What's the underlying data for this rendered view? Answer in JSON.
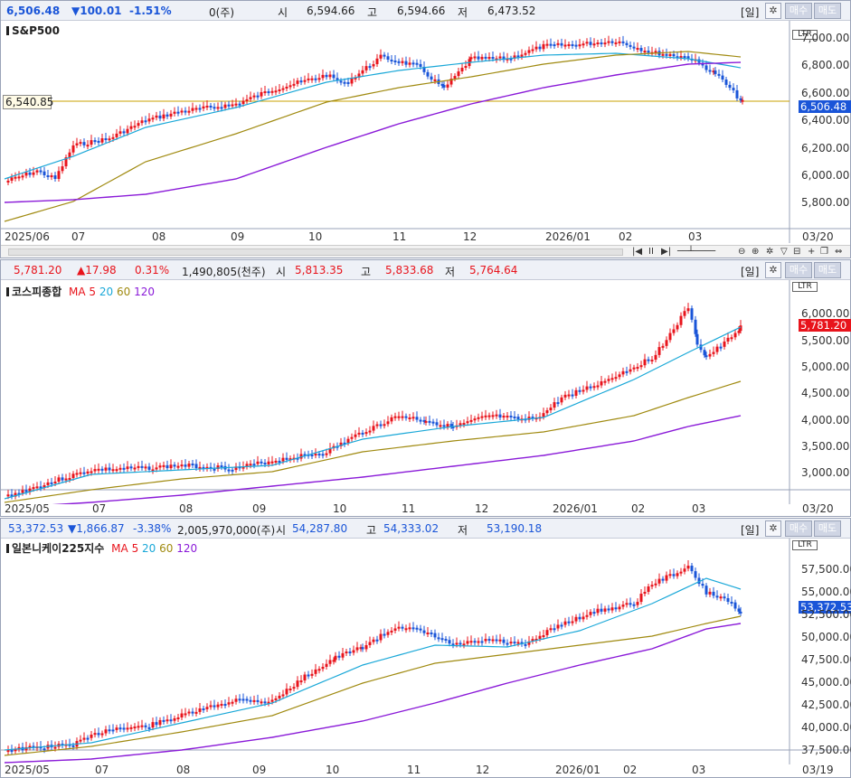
{
  "panels": [
    {
      "id": "sp500",
      "header": {
        "price": "6,506.48",
        "change": "▼100.01",
        "pct": "-1.51%",
        "volume": "0(주)",
        "open_label": "시",
        "open": "6,594.66",
        "high_label": "고",
        "high": "6,594.66",
        "low_label": "저",
        "low": "6,473.52",
        "period": "[일]",
        "buy": "매수",
        "sell": "매도"
      },
      "title": "S&P500",
      "ltr": "LTR",
      "ref_label": "6,540.85",
      "last_tag": "6,506.48",
      "y_ticks": [
        "7,000.00",
        "6,800.00",
        "6,600.00",
        "6,400.00",
        "6,200.00",
        "6,000.00",
        "5,800.00"
      ],
      "x_ticks": [
        "2025/06",
        "07",
        "08",
        "09",
        "10",
        "11",
        "12",
        "2026/01",
        "02",
        "03"
      ],
      "end_date": "03/20"
    },
    {
      "id": "kospi",
      "header": {
        "price": "5,781.20",
        "change": "▲17.98",
        "pct": "0.31%",
        "volume": "1,490,805(천주)",
        "open_label": "시",
        "open": "5,813.35",
        "high_label": "고",
        "high": "5,833.68",
        "low_label": "저",
        "low": "5,764.64",
        "period": "[일]",
        "buy": "매수",
        "sell": "매도"
      },
      "title": "코스피종합",
      "ma_label": "MA",
      "ma_periods": [
        "5",
        "20",
        "60",
        "120"
      ],
      "ltr": "LTR",
      "last_tag": "5,781.20",
      "y_ticks": [
        "6,000.00",
        "5,500.00",
        "5,000.00",
        "4,500.00",
        "4,000.00",
        "3,500.00",
        "3,000.00"
      ],
      "x_ticks": [
        "2025/05",
        "07",
        "08",
        "09",
        "10",
        "11",
        "12",
        "2026/01",
        "02",
        "03"
      ],
      "end_date": "03/20"
    },
    {
      "id": "nikkei",
      "header": {
        "price": "53,372.53",
        "change": "▼1,866.87",
        "pct": "-3.38%",
        "volume": "2,005,970,000(주)",
        "open_label": "시",
        "open": "54,287.80",
        "high_label": "고",
        "high": "54,333.02",
        "low_label": "저",
        "low": "53,190.18",
        "period": "[일]",
        "buy": "매수",
        "sell": "매도"
      },
      "title": "일본니케이225지수",
      "ma_label": "MA",
      "ma_periods": [
        "5",
        "20",
        "60",
        "120"
      ],
      "ltr": "LTR",
      "last_tag": "53,372.53",
      "y_ticks": [
        "57,500.00",
        "55,000.00",
        "52,500.00",
        "50,000.00",
        "47,500.00",
        "45,000.00",
        "42,500.00",
        "40,000.00",
        "37,500.00"
      ],
      "x_ticks": [
        "2025/05",
        "07",
        "08",
        "09",
        "10",
        "11",
        "12",
        "2026/01",
        "02",
        "03"
      ],
      "end_date": "03/19"
    }
  ],
  "colors": {
    "up": "#e8141c",
    "down": "#1a55d8",
    "ma5": "#e8141c",
    "ma20": "#1aa8d8",
    "ma60": "#a08a10",
    "ma120": "#8a1ad8",
    "ref_line": "#c8a000",
    "tag_up": "#e8141c",
    "tag_down": "#1a55d8"
  },
  "icons": {
    "settings": "gear-icon",
    "zoom_out": "zoom-out-icon",
    "zoom_in": "zoom-in-icon"
  }
}
